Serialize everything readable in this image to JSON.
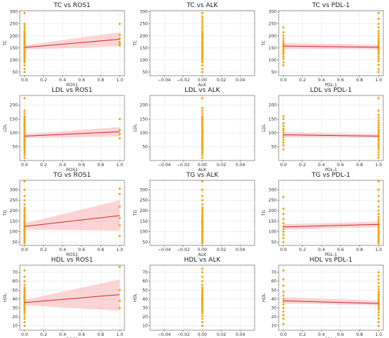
{
  "figure": {
    "colors": {
      "points": "#f4a300",
      "fit_line": "#d62728",
      "band": "#f7b3b3"
    }
  },
  "chart_data": [
    {
      "type": "scatter",
      "title": "TC vs ROS1",
      "xlabel": "ROS1",
      "ylabel": "TC",
      "xlim": [
        -0.05,
        1.05
      ],
      "ylim": [
        35,
        305
      ],
      "xticks": [
        0.0,
        0.2,
        0.4,
        0.6,
        0.8,
        1.0
      ],
      "xtick_labels": [
        "0.0",
        "0.2",
        "0.4",
        "0.6",
        "0.8",
        "1.0"
      ],
      "yticks": [
        50,
        100,
        150,
        200,
        250,
        300
      ],
      "ytick_labels": [
        "50",
        "100",
        "150",
        "200",
        "250",
        "300"
      ],
      "points": {
        "x0": 0,
        "x1": 1,
        "y_at_0": [
          50,
          62,
          78,
          90,
          98,
          105,
          110,
          115,
          120,
          125,
          128,
          132,
          135,
          138,
          140,
          143,
          145,
          148,
          150,
          152,
          155,
          158,
          160,
          163,
          165,
          168,
          170,
          173,
          176,
          180,
          185,
          190,
          195,
          200,
          205,
          210,
          215,
          220,
          230,
          240,
          250,
          295
        ],
        "y_at_1": [
          160,
          168,
          175,
          190,
          205,
          250
        ]
      },
      "fit": {
        "x": [
          0,
          1
        ],
        "y": [
          152,
          186
        ]
      },
      "band": {
        "lower": [
          143,
          157
        ],
        "upper": [
          161,
          215
        ]
      }
    },
    {
      "type": "scatter",
      "title": "TC vs ALK",
      "xlabel": "ALK",
      "ylabel": "TC",
      "xlim": [
        -0.055,
        0.055
      ],
      "ylim": [
        35,
        305
      ],
      "xticks": [
        -0.04,
        -0.02,
        0.0,
        0.02,
        0.04
      ],
      "xtick_labels": [
        "−0.04",
        "−0.02",
        "0.00",
        "0.02",
        "0.04"
      ],
      "yticks": [
        50,
        100,
        150,
        200,
        250,
        300
      ],
      "ytick_labels": [
        "50",
        "100",
        "150",
        "200",
        "250",
        "300"
      ],
      "points": {
        "x0": 0,
        "y_at_0": [
          50,
          62,
          78,
          90,
          98,
          105,
          110,
          115,
          120,
          125,
          128,
          132,
          135,
          138,
          140,
          143,
          145,
          148,
          150,
          152,
          155,
          158,
          160,
          163,
          165,
          168,
          170,
          173,
          176,
          180,
          185,
          190,
          195,
          200,
          205,
          210,
          215,
          220,
          230,
          240,
          250,
          260,
          270,
          280,
          295
        ]
      }
    },
    {
      "type": "scatter",
      "title": "TC vs PDL-1",
      "xlabel": "PDL-1",
      "ylabel": "TC",
      "xlim": [
        -0.05,
        1.05
      ],
      "ylim": [
        35,
        305
      ],
      "xticks": [
        0.0,
        0.2,
        0.4,
        0.6,
        0.8,
        1.0
      ],
      "xtick_labels": [
        "0.0",
        "0.2",
        "0.4",
        "0.6",
        "0.8",
        "1.0"
      ],
      "yticks": [
        50,
        100,
        150,
        200,
        250,
        300
      ],
      "ytick_labels": [
        "50",
        "100",
        "150",
        "200",
        "250",
        "300"
      ],
      "points": {
        "x0": 0,
        "x1": 1,
        "y_at_0": [
          78,
          90,
          105,
          115,
          125,
          132,
          140,
          148,
          155,
          160,
          165,
          170,
          178,
          188,
          200,
          215,
          235
        ],
        "y_at_1": [
          50,
          62,
          80,
          95,
          105,
          115,
          125,
          132,
          140,
          145,
          150,
          155,
          160,
          165,
          170,
          175,
          182,
          190,
          200,
          210,
          220,
          235,
          250,
          270,
          295
        ]
      },
      "fit": {
        "x": [
          0,
          1
        ],
        "y": [
          158,
          153
        ]
      },
      "band": {
        "lower": [
          146,
          144
        ],
        "upper": [
          170,
          163
        ]
      }
    },
    {
      "type": "scatter",
      "title": "LDL vs ROS1",
      "xlabel": "ROS1",
      "ylabel": "LDL",
      "xlim": [
        -0.05,
        1.05
      ],
      "ylim": [
        0,
        235
      ],
      "xticks": [
        0.0,
        0.2,
        0.4,
        0.6,
        0.8,
        1.0
      ],
      "xtick_labels": [
        "0.0",
        "0.2",
        "0.4",
        "0.6",
        "0.8",
        "1.0"
      ],
      "yticks": [
        50,
        100,
        150,
        200
      ],
      "ytick_labels": [
        "50",
        "100",
        "150",
        "200"
      ],
      "points": {
        "x0": 0,
        "x1": 1,
        "y_at_0": [
          10,
          20,
          28,
          35,
          40,
          45,
          50,
          55,
          58,
          62,
          66,
          70,
          74,
          78,
          82,
          86,
          90,
          94,
          98,
          102,
          106,
          110,
          115,
          120,
          125,
          130,
          135,
          140,
          145,
          150,
          155,
          160,
          170,
          180,
          225
        ],
        "y_at_1": [
          80,
          95,
          110,
          150
        ]
      },
      "fit": {
        "x": [
          0,
          1
        ],
        "y": [
          88,
          104
        ]
      },
      "band": {
        "lower": [
          81,
          87
        ],
        "upper": [
          95,
          121
        ]
      }
    },
    {
      "type": "scatter",
      "title": "LDL vs ALK",
      "xlabel": "ALK",
      "ylabel": "LDL",
      "xlim": [
        -0.055,
        0.055
      ],
      "ylim": [
        0,
        235
      ],
      "xticks": [
        -0.04,
        -0.02,
        0.0,
        0.02,
        0.04
      ],
      "xtick_labels": [
        "−0.04",
        "−0.02",
        "0.00",
        "0.02",
        "0.04"
      ],
      "yticks": [
        50,
        100,
        150,
        200
      ],
      "ytick_labels": [
        "50",
        "100",
        "150",
        "200"
      ],
      "points": {
        "x0": 0,
        "y_at_0": [
          10,
          20,
          28,
          35,
          40,
          45,
          50,
          55,
          58,
          62,
          66,
          70,
          74,
          78,
          82,
          86,
          90,
          94,
          98,
          102,
          106,
          110,
          115,
          120,
          125,
          130,
          135,
          140,
          145,
          150,
          155,
          160,
          170,
          180,
          190,
          225
        ]
      }
    },
    {
      "type": "scatter",
      "title": "LDL vs PDL-1",
      "xlabel": "PDL-1",
      "ylabel": "LDL",
      "xlim": [
        -0.05,
        1.05
      ],
      "ylim": [
        0,
        235
      ],
      "xticks": [
        0.0,
        0.2,
        0.4,
        0.6,
        0.8,
        1.0
      ],
      "xtick_labels": [
        "0.0",
        "0.2",
        "0.4",
        "0.6",
        "0.8",
        "1.0"
      ],
      "yticks": [
        50,
        100,
        150,
        200
      ],
      "ytick_labels": [
        "50",
        "100",
        "150",
        "200"
      ],
      "points": {
        "x0": 0,
        "x1": 1,
        "y_at_0": [
          40,
          55,
          65,
          75,
          85,
          92,
          100,
          108,
          115,
          125,
          135,
          150,
          160
        ],
        "y_at_1": [
          10,
          20,
          30,
          40,
          48,
          55,
          62,
          70,
          76,
          82,
          88,
          94,
          100,
          106,
          112,
          120,
          128,
          136,
          145,
          155,
          165,
          180,
          225
        ]
      },
      "fit": {
        "x": [
          0,
          1
        ],
        "y": [
          93,
          88
        ]
      },
      "band": {
        "lower": [
          84,
          82
        ],
        "upper": [
          102,
          95
        ]
      }
    },
    {
      "type": "scatter",
      "title": "TG vs ROS1",
      "xlabel": "ROS1",
      "ylabel": "TG",
      "xlim": [
        -0.05,
        1.05
      ],
      "ylim": [
        35,
        345
      ],
      "xticks": [
        0.0,
        0.2,
        0.4,
        0.6,
        0.8,
        1.0
      ],
      "xtick_labels": [
        "0.0",
        "0.2",
        "0.4",
        "0.6",
        "0.8",
        "1.0"
      ],
      "yticks": [
        50,
        100,
        150,
        200,
        250,
        300
      ],
      "ytick_labels": [
        "50",
        "100",
        "150",
        "200",
        "250",
        "300"
      ],
      "points": {
        "x0": 0,
        "x1": 1,
        "y_at_0": [
          45,
          55,
          62,
          70,
          78,
          85,
          90,
          96,
          102,
          108,
          112,
          118,
          122,
          128,
          134,
          140,
          146,
          152,
          160,
          168,
          176,
          185,
          195,
          205,
          215,
          230,
          250,
          270,
          300,
          340
        ],
        "y_at_1": [
          80,
          130,
          165,
          220,
          280,
          305
        ]
      },
      "fit": {
        "x": [
          0,
          1
        ],
        "y": [
          125,
          177
        ]
      },
      "band": {
        "lower": [
          110,
          105
        ],
        "upper": [
          140,
          250
        ]
      }
    },
    {
      "type": "scatter",
      "title": "TG vs ALK",
      "xlabel": "ALK",
      "ylabel": "TG",
      "xlim": [
        -0.055,
        0.055
      ],
      "ylim": [
        35,
        345
      ],
      "xticks": [
        -0.04,
        -0.02,
        0.0,
        0.02,
        0.04
      ],
      "xtick_labels": [
        "−0.04",
        "−0.02",
        "0.00",
        "0.02",
        "0.04"
      ],
      "yticks": [
        50,
        100,
        150,
        200,
        250,
        300
      ],
      "ytick_labels": [
        "50",
        "100",
        "150",
        "200",
        "250",
        "300"
      ],
      "points": {
        "x0": 0,
        "y_at_0": [
          45,
          55,
          62,
          70,
          78,
          85,
          90,
          96,
          102,
          108,
          112,
          118,
          122,
          128,
          134,
          140,
          146,
          152,
          160,
          168,
          176,
          185,
          195,
          205,
          215,
          230,
          250,
          270,
          300,
          340
        ]
      }
    },
    {
      "type": "scatter",
      "title": "TG vs PDL-1",
      "xlabel": "PDL-1",
      "ylabel": "TG",
      "xlim": [
        -0.05,
        1.05
      ],
      "ylim": [
        35,
        345
      ],
      "xticks": [
        0.0,
        0.2,
        0.4,
        0.6,
        0.8,
        1.0
      ],
      "xtick_labels": [
        "0.0",
        "0.2",
        "0.4",
        "0.6",
        "0.8",
        "1.0"
      ],
      "yticks": [
        50,
        100,
        150,
        200,
        250,
        300
      ],
      "ytick_labels": [
        "50",
        "100",
        "150",
        "200",
        "250",
        "300"
      ],
      "points": {
        "x0": 0,
        "x1": 1,
        "y_at_0": [
          50,
          70,
          85,
          100,
          112,
          125,
          140,
          160,
          185,
          210,
          265
        ],
        "y_at_1": [
          45,
          55,
          62,
          70,
          78,
          85,
          92,
          100,
          108,
          116,
          124,
          132,
          140,
          150,
          160,
          172,
          185,
          200,
          220,
          245,
          270,
          300,
          340
        ]
      },
      "fit": {
        "x": [
          0,
          1
        ],
        "y": [
          123,
          135
        ]
      },
      "band": {
        "lower": [
          110,
          122
        ],
        "upper": [
          136,
          148
        ]
      }
    },
    {
      "type": "scatter",
      "title": "HDL vs ROS1",
      "xlabel": "ROS1",
      "ylabel": "HDL",
      "xlim": [
        -0.05,
        1.05
      ],
      "ylim": [
        5,
        78
      ],
      "xticks": [
        0.0,
        0.2,
        0.4,
        0.6,
        0.8,
        1.0
      ],
      "xtick_labels": [
        "0.0",
        "0.2",
        "0.4",
        "0.6",
        "0.8",
        "1.0"
      ],
      "yticks": [
        10,
        20,
        30,
        40,
        50,
        60,
        70
      ],
      "ytick_labels": [
        "10",
        "20",
        "30",
        "40",
        "50",
        "60",
        "70"
      ],
      "points": {
        "x0": 0,
        "x1": 1,
        "y_at_0": [
          10,
          14,
          18,
          21,
          24,
          26,
          28,
          30,
          32,
          33,
          34,
          35,
          36,
          37,
          38,
          39,
          40,
          41,
          42,
          43,
          44,
          45,
          47,
          49,
          51,
          53,
          56,
          60,
          65,
          72
        ],
        "y_at_1": [
          30,
          38,
          50,
          76
        ]
      },
      "fit": {
        "x": [
          0,
          1
        ],
        "y": [
          36,
          45
        ]
      },
      "band": {
        "lower": [
          33,
          27
        ],
        "upper": [
          39,
          62
        ]
      }
    },
    {
      "type": "scatter",
      "title": "HDL vs ALK",
      "xlabel": "ALK",
      "ylabel": "HDL",
      "xlim": [
        -0.055,
        0.055
      ],
      "ylim": [
        5,
        78
      ],
      "xticks": [
        -0.04,
        -0.02,
        0.0,
        0.02,
        0.04
      ],
      "xtick_labels": [
        "−0.04",
        "−0.02",
        "0.00",
        "0.02",
        "0.04"
      ],
      "yticks": [
        10,
        20,
        30,
        40,
        50,
        60,
        70
      ],
      "ytick_labels": [
        "10",
        "20",
        "30",
        "40",
        "50",
        "60",
        "70"
      ],
      "points": {
        "x0": 0,
        "y_at_0": [
          10,
          14,
          18,
          21,
          24,
          26,
          28,
          30,
          32,
          33,
          34,
          35,
          36,
          37,
          38,
          39,
          40,
          41,
          42,
          43,
          44,
          45,
          47,
          49,
          51,
          53,
          56,
          60,
          65,
          70,
          74
        ]
      }
    },
    {
      "type": "scatter",
      "title": "HDL vs PDL-1",
      "xlabel": "PDL-1",
      "ylabel": "HDL",
      "xlim": [
        -0.05,
        1.05
      ],
      "ylim": [
        5,
        78
      ],
      "xticks": [
        0.0,
        0.2,
        0.4,
        0.6,
        0.8,
        1.0
      ],
      "xtick_labels": [
        "0.0",
        "0.2",
        "0.4",
        "0.6",
        "0.8",
        "1.0"
      ],
      "yticks": [
        10,
        20,
        30,
        40,
        50,
        60,
        70
      ],
      "ytick_labels": [
        "10",
        "20",
        "30",
        "40",
        "50",
        "60",
        "70"
      ],
      "points": {
        "x0": 0,
        "x1": 1,
        "y_at_0": [
          12,
          18,
          22,
          26,
          30,
          34,
          37,
          40,
          44,
          48,
          55,
          62,
          72
        ],
        "y_at_1": [
          10,
          14,
          18,
          22,
          25,
          28,
          30,
          32,
          34,
          36,
          38,
          40,
          42,
          44,
          46,
          48,
          51,
          54,
          58,
          62,
          66,
          70
        ]
      },
      "fit": {
        "x": [
          0,
          1
        ],
        "y": [
          38,
          35
        ]
      },
      "band": {
        "lower": [
          35,
          33
        ],
        "upper": [
          42,
          38
        ]
      }
    }
  ]
}
